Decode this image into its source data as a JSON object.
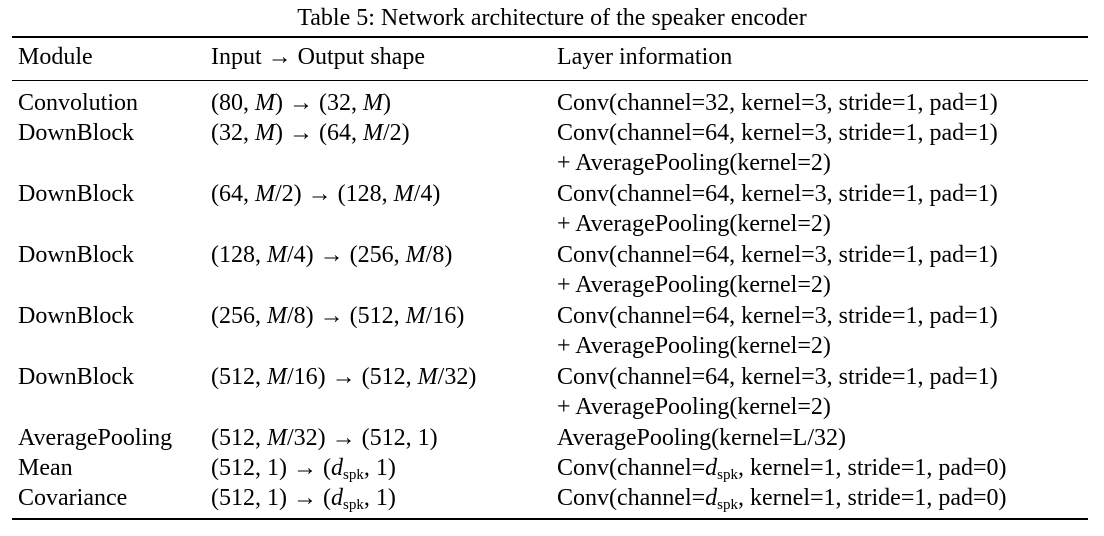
{
  "caption": "Table 5: Network architecture of the speaker encoder",
  "headers": [
    "Module",
    "Input → Output shape",
    "Layer information"
  ],
  "rows": [
    {
      "module": "Convolution",
      "shape_in": "(80, M)",
      "shape_out": "(32, M)",
      "layer": [
        "Conv(channel=32, kernel=3, stride=1, pad=1)"
      ]
    },
    {
      "module": "DownBlock",
      "shape_in": "(32, M)",
      "shape_out": "(64, M/2)",
      "layer": [
        "Conv(channel=64, kernel=3, stride=1, pad=1)",
        "+ AveragePooling(kernel=2)"
      ]
    },
    {
      "module": "DownBlock",
      "shape_in": "(64, M/2)",
      "shape_out": "(128, M/4)",
      "layer": [
        "Conv(channel=64, kernel=3, stride=1, pad=1)",
        "+ AveragePooling(kernel=2)"
      ]
    },
    {
      "module": "DownBlock",
      "shape_in": "(128, M/4)",
      "shape_out": "(256, M/8)",
      "layer": [
        "Conv(channel=64, kernel=3, stride=1, pad=1)",
        "+ AveragePooling(kernel=2)"
      ]
    },
    {
      "module": "DownBlock",
      "shape_in": "(256, M/8)",
      "shape_out": "(512, M/16)",
      "layer": [
        "Conv(channel=64, kernel=3, stride=1, pad=1)",
        "+ AveragePooling(kernel=2)"
      ]
    },
    {
      "module": "DownBlock",
      "shape_in": "(512, M/16)",
      "shape_out": "(512, M/32)",
      "layer": [
        "Conv(channel=64, kernel=3, stride=1, pad=1)",
        "+ AveragePooling(kernel=2)"
      ]
    },
    {
      "module": "AveragePooling",
      "shape_in": "(512, M/32)",
      "shape_out": "(512, 1)",
      "layer": [
        "AveragePooling(kernel=L/32)"
      ]
    },
    {
      "module": "Mean",
      "shape_in": "(512, 1)",
      "shape_out": "(d_spk, 1)",
      "layer": [
        "Conv(channel=d_spk, kernel=1, stride=1, pad=0)"
      ]
    },
    {
      "module": "Covariance",
      "shape_in": "(512, 1)",
      "shape_out": "(d_spk, 1)",
      "layer": [
        "Conv(channel=d_spk, kernel=1, stride=1, pad=0)"
      ]
    }
  ]
}
